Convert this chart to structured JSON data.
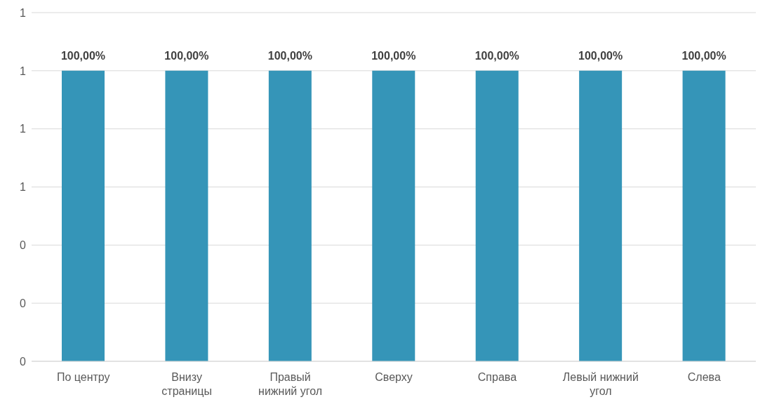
{
  "chart_data": {
    "type": "bar",
    "categories": [
      "По центру",
      "Внизу страницы",
      "Правый нижний угол",
      "Сверху",
      "Справа",
      "Левый нижний угол",
      "Слева"
    ],
    "values": [
      1,
      1,
      1,
      1,
      1,
      1,
      1
    ],
    "value_labels": [
      "100,00%",
      "100,00%",
      "100,00%",
      "100,00%",
      "100,00%",
      "100,00%",
      "100,00%"
    ],
    "color": "#3595b8",
    "ylim": [
      0,
      1.2
    ],
    "yticks": [
      {
        "value": 0,
        "label": "0"
      },
      {
        "value": 0.2,
        "label": "0"
      },
      {
        "value": 0.4,
        "label": "0"
      },
      {
        "value": 0.6,
        "label": "1"
      },
      {
        "value": 0.8,
        "label": "1"
      },
      {
        "value": 1,
        "label": "1"
      },
      {
        "value": 1.2,
        "label": "1"
      }
    ],
    "grid": "y"
  }
}
